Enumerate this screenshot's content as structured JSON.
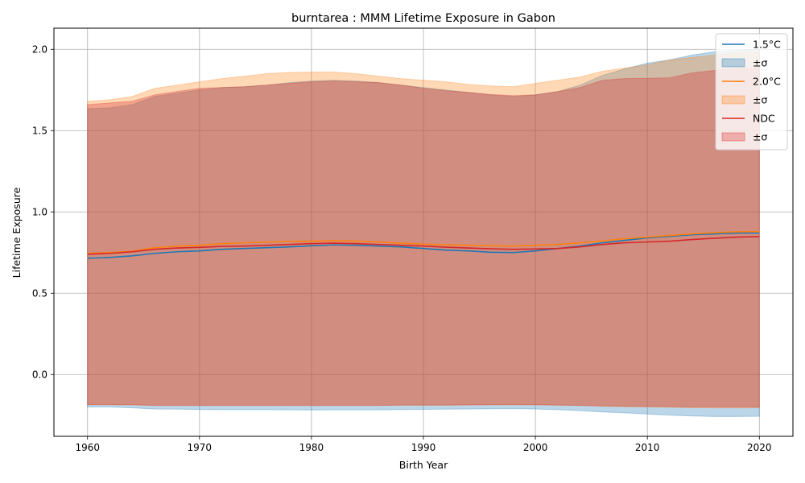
{
  "chart_data": {
    "type": "area",
    "title": "burntarea : MMM Lifetime Exposure in Gabon",
    "xlabel": "Birth Year",
    "ylabel": "Lifetime Exposure",
    "xlim": [
      1957,
      2023
    ],
    "ylim": [
      -0.38,
      2.13
    ],
    "xticks": [
      1960,
      1970,
      1980,
      1990,
      2000,
      2010,
      2020
    ],
    "xtick_labels": [
      "1960",
      "1970",
      "1980",
      "1990",
      "2000",
      "2010",
      "2020"
    ],
    "yticks": [
      0.0,
      0.5,
      1.0,
      1.5,
      2.0
    ],
    "ytick_labels": [
      "0.0",
      "0.5",
      "1.0",
      "1.5",
      "2.0"
    ],
    "grid": true,
    "legend_position": "top-right",
    "legend": [
      {
        "label": "1.5°C",
        "kind": "line",
        "series": 0
      },
      {
        "label": "±σ",
        "kind": "band",
        "series": 0
      },
      {
        "label": "2.0°C",
        "kind": "line",
        "series": 1
      },
      {
        "label": "±σ",
        "kind": "band",
        "series": 1
      },
      {
        "label": "NDC",
        "kind": "line",
        "series": 2
      },
      {
        "label": "±σ",
        "kind": "band",
        "series": 2
      }
    ],
    "x": [
      1960,
      1962,
      1964,
      1966,
      1968,
      1970,
      1972,
      1974,
      1976,
      1978,
      1980,
      1982,
      1984,
      1986,
      1988,
      1990,
      1992,
      1994,
      1996,
      1998,
      2000,
      2002,
      2004,
      2006,
      2008,
      2010,
      2012,
      2014,
      2016,
      2018,
      2020
    ],
    "series": [
      {
        "name": "1.5°C",
        "color": "#1f77b4",
        "band_color": "#1f77b4",
        "mean": [
          0.715,
          0.72,
          0.73,
          0.745,
          0.755,
          0.76,
          0.77,
          0.775,
          0.78,
          0.785,
          0.792,
          0.797,
          0.795,
          0.79,
          0.785,
          0.775,
          0.765,
          0.76,
          0.752,
          0.75,
          0.76,
          0.775,
          0.79,
          0.81,
          0.825,
          0.84,
          0.85,
          0.86,
          0.865,
          0.87,
          0.87
        ],
        "upper": [
          1.635,
          1.64,
          1.66,
          1.71,
          1.73,
          1.75,
          1.765,
          1.77,
          1.78,
          1.795,
          1.805,
          1.81,
          1.805,
          1.795,
          1.78,
          1.765,
          1.75,
          1.735,
          1.72,
          1.71,
          1.72,
          1.74,
          1.78,
          1.84,
          1.88,
          1.915,
          1.935,
          1.965,
          1.985,
          1.995,
          2.0
        ],
        "lower": [
          -0.2,
          -0.2,
          -0.205,
          -0.212,
          -0.213,
          -0.215,
          -0.216,
          -0.216,
          -0.216,
          -0.217,
          -0.218,
          -0.217,
          -0.217,
          -0.217,
          -0.216,
          -0.214,
          -0.213,
          -0.212,
          -0.211,
          -0.21,
          -0.212,
          -0.216,
          -0.222,
          -0.23,
          -0.236,
          -0.243,
          -0.25,
          -0.255,
          -0.258,
          -0.258,
          -0.257
        ]
      },
      {
        "name": "2.0°C",
        "color": "#ff7f0e",
        "band_color": "#ff7f0e",
        "mean": [
          0.745,
          0.75,
          0.758,
          0.78,
          0.79,
          0.795,
          0.805,
          0.81,
          0.815,
          0.818,
          0.82,
          0.823,
          0.82,
          0.815,
          0.808,
          0.802,
          0.798,
          0.795,
          0.792,
          0.79,
          0.795,
          0.8,
          0.81,
          0.822,
          0.835,
          0.845,
          0.855,
          0.865,
          0.872,
          0.878,
          0.88
        ],
        "upper": [
          1.68,
          1.69,
          1.71,
          1.76,
          1.78,
          1.8,
          1.82,
          1.835,
          1.85,
          1.858,
          1.86,
          1.86,
          1.85,
          1.835,
          1.82,
          1.81,
          1.8,
          1.785,
          1.775,
          1.77,
          1.79,
          1.81,
          1.83,
          1.865,
          1.885,
          1.905,
          1.935,
          1.95,
          1.965,
          1.98,
          1.985
        ],
        "lower": [
          -0.185,
          -0.185,
          -0.187,
          -0.19,
          -0.19,
          -0.19,
          -0.19,
          -0.19,
          -0.19,
          -0.19,
          -0.19,
          -0.19,
          -0.19,
          -0.19,
          -0.188,
          -0.188,
          -0.188,
          -0.187,
          -0.186,
          -0.185,
          -0.186,
          -0.188,
          -0.19,
          -0.195,
          -0.198,
          -0.2,
          -0.202,
          -0.204,
          -0.205,
          -0.205,
          -0.205
        ]
      },
      {
        "name": "NDC",
        "color": "#d62728",
        "band_color": "#d62728",
        "mean": [
          0.74,
          0.745,
          0.755,
          0.77,
          0.778,
          0.782,
          0.788,
          0.79,
          0.795,
          0.8,
          0.805,
          0.808,
          0.805,
          0.8,
          0.795,
          0.79,
          0.783,
          0.778,
          0.773,
          0.77,
          0.772,
          0.775,
          0.785,
          0.8,
          0.81,
          0.815,
          0.82,
          0.83,
          0.838,
          0.845,
          0.848
        ],
        "upper": [
          1.66,
          1.67,
          1.68,
          1.72,
          1.74,
          1.76,
          1.765,
          1.77,
          1.78,
          1.79,
          1.8,
          1.805,
          1.8,
          1.795,
          1.78,
          1.76,
          1.745,
          1.735,
          1.722,
          1.715,
          1.72,
          1.74,
          1.765,
          1.81,
          1.82,
          1.822,
          1.825,
          1.855,
          1.87,
          1.88,
          1.885
        ],
        "lower": [
          -0.185,
          -0.185,
          -0.186,
          -0.19,
          -0.19,
          -0.19,
          -0.19,
          -0.19,
          -0.19,
          -0.19,
          -0.19,
          -0.19,
          -0.19,
          -0.19,
          -0.188,
          -0.188,
          -0.188,
          -0.187,
          -0.186,
          -0.185,
          -0.186,
          -0.188,
          -0.19,
          -0.193,
          -0.195,
          -0.196,
          -0.198,
          -0.2,
          -0.2,
          -0.2,
          -0.2
        ]
      }
    ]
  }
}
